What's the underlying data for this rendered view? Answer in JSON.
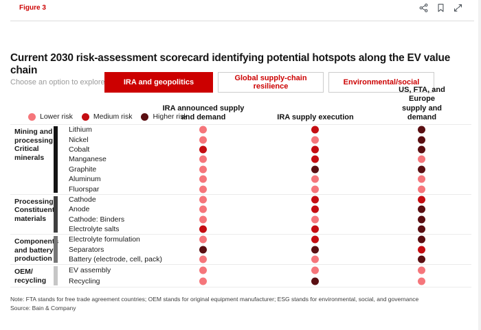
{
  "header": {
    "figure_label": "Figure 3",
    "icons": [
      "share-icon",
      "bookmark-icon",
      "expand-icon"
    ]
  },
  "title": "Current 2030 risk-assessment scorecard identifying potential hotspots along the EV value chain",
  "controls": {
    "prompt": "Choose an option to explore",
    "options": [
      {
        "label": "IRA and geopolitics",
        "active": true
      },
      {
        "label": "Global supply-chain resilience",
        "active": false
      },
      {
        "label": "Environmental/social",
        "active": false
      }
    ]
  },
  "legend": {
    "items": [
      {
        "label": "Lower risk",
        "level": "lower",
        "color": "#f5767b"
      },
      {
        "label": "Medium risk",
        "level": "medium",
        "color": "#c40d12"
      },
      {
        "label": "Higher risk",
        "level": "higher",
        "color": "#5a0f12"
      }
    ]
  },
  "chart_data": {
    "type": "heatmap",
    "title": "Current 2030 risk-assessment scorecard identifying potential hotspots along the EV value chain",
    "columns": [
      "IRA announced supply and demand",
      "IRA supply execution",
      "US, FTA, and Europe supply and demand"
    ],
    "column_headers_display": [
      "IRA announced supply\nand demand",
      "IRA supply execution",
      "US, FTA, and Europe\nsupply and demand"
    ],
    "risk_scale": [
      {
        "level": "lower",
        "label": "Lower risk",
        "color": "#f5767b"
      },
      {
        "level": "medium",
        "label": "Medium risk",
        "color": "#c40d12"
      },
      {
        "level": "higher",
        "label": "Higher risk",
        "color": "#5a0f12"
      }
    ],
    "groups": [
      {
        "label": "Mining and\nprocessing:\nCritical\nminerals",
        "bar_color": "#141414",
        "rows": [
          {
            "label": "Lithium",
            "risks": [
              "lower",
              "medium",
              "higher"
            ]
          },
          {
            "label": "Nickel",
            "risks": [
              "lower",
              "lower",
              "higher"
            ]
          },
          {
            "label": "Cobalt",
            "risks": [
              "medium",
              "medium",
              "higher"
            ]
          },
          {
            "label": "Manganese",
            "risks": [
              "lower",
              "medium",
              "lower"
            ]
          },
          {
            "label": "Graphite",
            "risks": [
              "lower",
              "higher",
              "higher"
            ]
          },
          {
            "label": "Aluminum",
            "risks": [
              "lower",
              "lower",
              "lower"
            ]
          },
          {
            "label": "Fluorspar",
            "risks": [
              "lower",
              "lower",
              "lower"
            ]
          }
        ]
      },
      {
        "label": "Processing:\nConstituent\nmaterials",
        "bar_color": "#3f3f3f",
        "rows": [
          {
            "label": "Cathode",
            "risks": [
              "lower",
              "medium",
              "medium"
            ]
          },
          {
            "label": "Anode",
            "risks": [
              "lower",
              "medium",
              "higher"
            ]
          },
          {
            "label": "Cathode: Binders",
            "risks": [
              "lower",
              "lower",
              "higher"
            ]
          },
          {
            "label": "Electrolyte salts",
            "risks": [
              "medium",
              "medium",
              "higher"
            ]
          }
        ]
      },
      {
        "label": "Components\nand battery\nproduction",
        "bar_color": "#757575",
        "rows": [
          {
            "label": "Electrolyte formulation",
            "risks": [
              "lower",
              "medium",
              "higher"
            ]
          },
          {
            "label": "Separators",
            "risks": [
              "higher",
              "higher",
              "medium"
            ]
          },
          {
            "label": "Battery (electrode, cell, pack)",
            "risks": [
              "lower",
              "lower",
              "higher"
            ]
          }
        ]
      },
      {
        "label": "OEM/\nrecycling",
        "bar_color": "#c6c6c6",
        "rows": [
          {
            "label": "EV assembly",
            "risks": [
              "lower",
              "lower",
              "lower"
            ]
          },
          {
            "label": "Recycling",
            "risks": [
              "lower",
              "higher",
              "lower"
            ]
          }
        ]
      }
    ]
  },
  "notes": {
    "note": "Note: FTA stands for free trade agreement countries; OEM stands for original equipment manufacturer; ESG stands for environmental, social, and governance",
    "source": "Source: Bain & Company"
  }
}
